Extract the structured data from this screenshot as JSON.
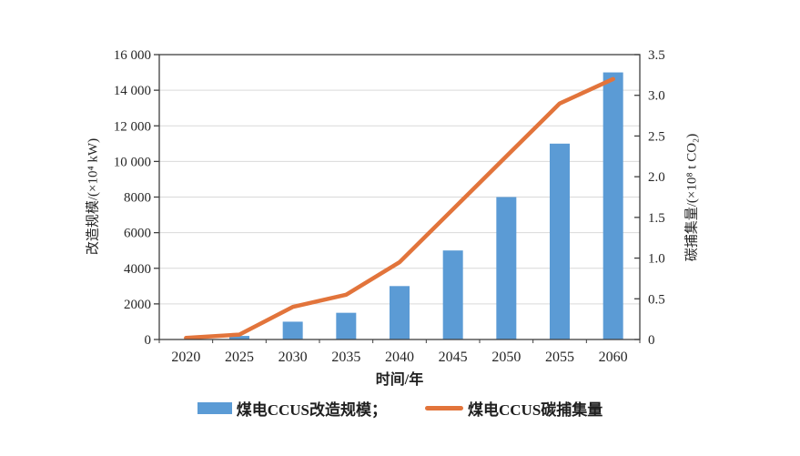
{
  "chart_data": {
    "type": "bar+line",
    "title": "",
    "categories": [
      "2020",
      "2025",
      "2030",
      "2035",
      "2040",
      "2045",
      "2050",
      "2055",
      "2060"
    ],
    "series": [
      {
        "name": "煤电CCUS改造规模",
        "chart_type": "bar",
        "axis": "left",
        "color": "#5B9BD5",
        "values": [
          0,
          200,
          1000,
          1500,
          3000,
          5000,
          8000,
          11000,
          15000
        ]
      },
      {
        "name": "煤电CCUS碳捕集量",
        "chart_type": "line",
        "axis": "right",
        "color": "#E2743B",
        "values": [
          0.02,
          0.06,
          0.4,
          0.55,
          0.95,
          1.6,
          2.25,
          2.9,
          3.2
        ]
      }
    ],
    "x_axis": {
      "label": "时间/年"
    },
    "left_axis": {
      "label": "改造规模/(×10⁴ kW)",
      "min": 0,
      "max": 16000,
      "tick_step": 2000,
      "tick_labels": [
        "0",
        "2000",
        "4000",
        "6000",
        "8000",
        "10 000",
        "12 000",
        "14 000",
        "16 000"
      ]
    },
    "right_axis": {
      "label": "碳捕集量/(×10⁸ t CO₂)",
      "min": 0,
      "max": 3.5,
      "tick_step": 0.5,
      "tick_labels": [
        "0",
        "0.5",
        "1.0",
        "1.5",
        "2.0",
        "2.5",
        "3.0",
        "3.5"
      ]
    },
    "grid": {
      "horizontal": true,
      "color": "#d9d9d9"
    },
    "axis_color": "#3f3f3f",
    "text_color": "#262626",
    "legend": {
      "position": "bottom",
      "items": [
        {
          "label": "煤电CCUS改造规模；",
          "swatch": "bar"
        },
        {
          "label": "煤电CCUS碳捕集量",
          "swatch": "line"
        }
      ]
    }
  }
}
